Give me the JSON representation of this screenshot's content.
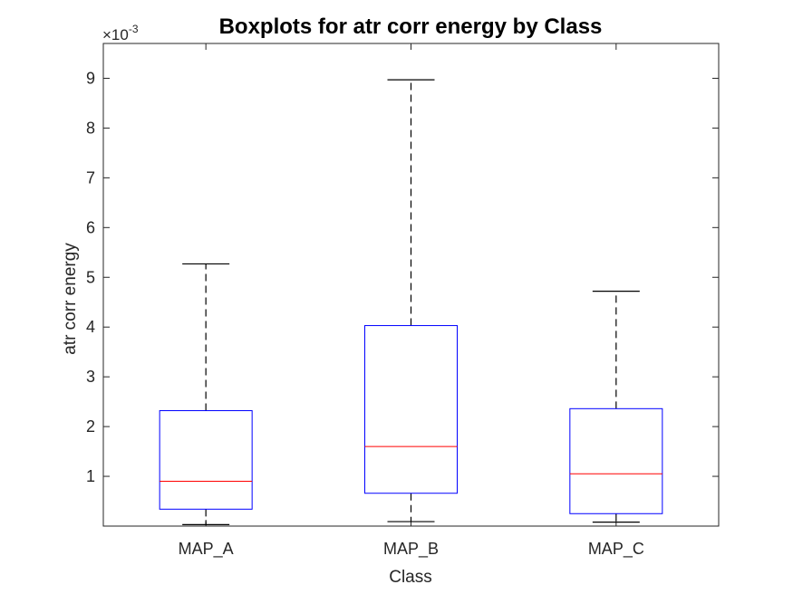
{
  "chart_data": {
    "type": "boxplot",
    "title": "Boxplots for atr corr energy by Class",
    "xlabel": "Class",
    "ylabel": "atr corr energy",
    "y_exponent_label": {
      "times": "×10",
      "power": "-3"
    },
    "ylim": [
      0.0,
      0.0097
    ],
    "y_ticks": [
      0.001,
      0.002,
      0.003,
      0.004,
      0.005,
      0.006,
      0.007,
      0.008,
      0.009
    ],
    "y_tick_labels": [
      "1",
      "2",
      "3",
      "4",
      "5",
      "6",
      "7",
      "8",
      "9"
    ],
    "grid": false,
    "categories": [
      "MAP_A",
      "MAP_B",
      "MAP_C"
    ],
    "boxes": [
      {
        "category": "MAP_A",
        "min": 3e-05,
        "q1": 0.00034,
        "median": 0.0009,
        "q3": 0.00232,
        "max": 0.00527
      },
      {
        "category": "MAP_B",
        "min": 9e-05,
        "q1": 0.00066,
        "median": 0.0016,
        "q3": 0.00403,
        "max": 0.00897
      },
      {
        "category": "MAP_C",
        "min": 8e-05,
        "q1": 0.00025,
        "median": 0.00105,
        "q3": 0.00236,
        "max": 0.00472
      }
    ],
    "colors": {
      "box": "#0000ff",
      "median": "#ff0000",
      "whisker": "#000000",
      "axes": "#262626"
    }
  }
}
